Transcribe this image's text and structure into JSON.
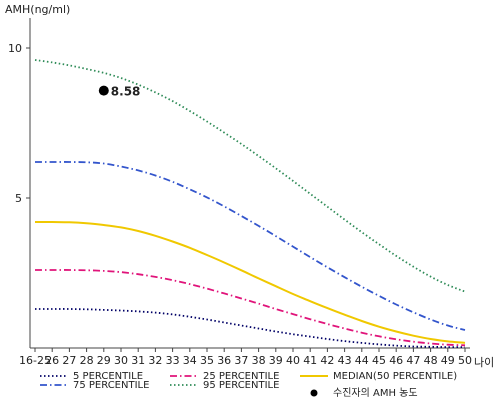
{
  "chart_data": {
    "type": "line",
    "ylabel": "AMH(ng/ml)",
    "xlabel": "나이",
    "ylim": [
      0,
      11
    ],
    "yticks": [
      5,
      10
    ],
    "categories": [
      "16-25",
      "26",
      "27",
      "28",
      "29",
      "30",
      "31",
      "32",
      "33",
      "34",
      "35",
      "36",
      "37",
      "38",
      "39",
      "40",
      "41",
      "42",
      "43",
      "44",
      "45",
      "46",
      "47",
      "48",
      "49",
      "50"
    ],
    "series": [
      {
        "name": "5 PERCENTILE",
        "color": "#000066",
        "style": "dotted",
        "values": [
          1.3,
          1.3,
          1.3,
          1.29,
          1.27,
          1.25,
          1.22,
          1.18,
          1.12,
          1.04,
          0.95,
          0.85,
          0.75,
          0.65,
          0.55,
          0.46,
          0.38,
          0.3,
          0.23,
          0.17,
          0.12,
          0.08,
          0.05,
          0.04,
          0.03,
          0.03
        ]
      },
      {
        "name": "25 PERCENTILE",
        "color": "#e0147a",
        "style": "dashdot",
        "values": [
          2.6,
          2.6,
          2.6,
          2.59,
          2.57,
          2.53,
          2.46,
          2.37,
          2.26,
          2.13,
          1.98,
          1.82,
          1.65,
          1.48,
          1.3,
          1.13,
          0.96,
          0.8,
          0.65,
          0.51,
          0.39,
          0.29,
          0.21,
          0.15,
          0.11,
          0.09
        ]
      },
      {
        "name": "MEDIAN(50 PERCENTILE)",
        "color": "#f0c800",
        "style": "solid",
        "values": [
          4.2,
          4.2,
          4.19,
          4.16,
          4.1,
          4.02,
          3.9,
          3.74,
          3.55,
          3.34,
          3.1,
          2.85,
          2.59,
          2.32,
          2.06,
          1.8,
          1.56,
          1.33,
          1.11,
          0.9,
          0.71,
          0.55,
          0.41,
          0.3,
          0.22,
          0.17
        ]
      },
      {
        "name": "75 PERCENTILE",
        "color": "#3355cc",
        "style": "dashdot",
        "values": [
          6.2,
          6.2,
          6.2,
          6.19,
          6.15,
          6.05,
          5.92,
          5.75,
          5.54,
          5.29,
          5.02,
          4.72,
          4.4,
          4.07,
          3.73,
          3.38,
          3.03,
          2.69,
          2.36,
          2.04,
          1.74,
          1.45,
          1.19,
          0.95,
          0.75,
          0.6
        ]
      },
      {
        "name": "95 PERCENTILE",
        "color": "#2e8b57",
        "style": "dotted",
        "values": [
          9.6,
          9.52,
          9.42,
          9.3,
          9.17,
          9.0,
          8.78,
          8.52,
          8.23,
          7.9,
          7.55,
          7.18,
          6.8,
          6.4,
          5.99,
          5.57,
          5.14,
          4.71,
          4.28,
          3.86,
          3.46,
          3.07,
          2.71,
          2.38,
          2.1,
          1.88
        ]
      }
    ],
    "marker": {
      "category": "29",
      "value": 8.58,
      "label": "8.58",
      "legend": "수진자의 AMH 농도",
      "color": "#000000"
    }
  }
}
